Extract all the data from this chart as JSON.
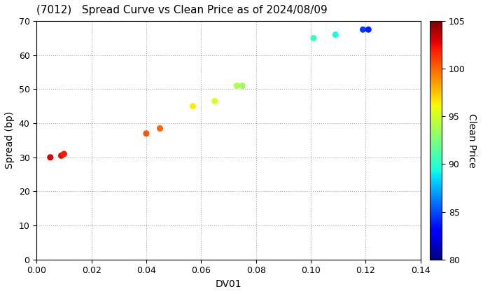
{
  "title": "(7012)   Spread Curve vs Clean Price as of 2024/08/09",
  "xlabel": "DV01",
  "ylabel": "Spread (bp)",
  "colorbar_label": "Clean Price",
  "xlim": [
    0.0,
    0.14
  ],
  "ylim": [
    0,
    70
  ],
  "xticks": [
    0.0,
    0.02,
    0.04,
    0.06,
    0.08,
    0.1,
    0.12,
    0.14
  ],
  "yticks": [
    0,
    10,
    20,
    30,
    40,
    50,
    60,
    70
  ],
  "cmap_min": 80,
  "cmap_max": 105,
  "points": [
    {
      "dv01": 0.005,
      "spread": 30.0,
      "price": 103.0
    },
    {
      "dv01": 0.009,
      "spread": 30.5,
      "price": 102.5
    },
    {
      "dv01": 0.01,
      "spread": 31.0,
      "price": 102.0
    },
    {
      "dv01": 0.04,
      "spread": 37.0,
      "price": 100.5
    },
    {
      "dv01": 0.045,
      "spread": 38.5,
      "price": 100.0
    },
    {
      "dv01": 0.057,
      "spread": 45.0,
      "price": 96.5
    },
    {
      "dv01": 0.065,
      "spread": 46.5,
      "price": 95.5
    },
    {
      "dv01": 0.073,
      "spread": 51.0,
      "price": 94.0
    },
    {
      "dv01": 0.075,
      "spread": 51.0,
      "price": 93.5
    },
    {
      "dv01": 0.101,
      "spread": 65.0,
      "price": 90.5
    },
    {
      "dv01": 0.109,
      "spread": 66.0,
      "price": 89.5
    },
    {
      "dv01": 0.119,
      "spread": 67.5,
      "price": 84.5
    },
    {
      "dv01": 0.121,
      "spread": 67.5,
      "price": 84.0
    }
  ],
  "marker_size": 30,
  "background_color": "#ffffff",
  "grid_color": "#aaaaaa",
  "colorbar_ticks": [
    80,
    85,
    90,
    95,
    100,
    105
  ],
  "title_fontsize": 11,
  "axis_fontsize": 10,
  "cbar_fontsize": 10
}
